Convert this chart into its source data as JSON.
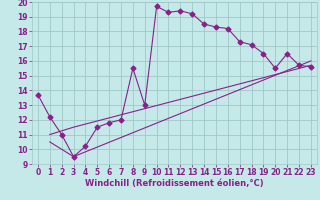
{
  "xlabel": "Windchill (Refroidissement éolien,°C)",
  "bg_color": "#c5e8e8",
  "grid_color": "#a0c8c8",
  "line_color": "#882288",
  "xlim": [
    -0.5,
    23.5
  ],
  "ylim": [
    9,
    20
  ],
  "xticks": [
    0,
    1,
    2,
    3,
    4,
    5,
    6,
    7,
    8,
    9,
    10,
    11,
    12,
    13,
    14,
    15,
    16,
    17,
    18,
    19,
    20,
    21,
    22,
    23
  ],
  "yticks": [
    9,
    10,
    11,
    12,
    13,
    14,
    15,
    16,
    17,
    18,
    19,
    20
  ],
  "series1_x": [
    0,
    1,
    2,
    3,
    4,
    5,
    6,
    7,
    8,
    9,
    10,
    11,
    12,
    13,
    14,
    15,
    16,
    17,
    18,
    19,
    20,
    21,
    22,
    23
  ],
  "series1_y": [
    13.7,
    12.2,
    11.0,
    9.5,
    10.2,
    11.5,
    11.8,
    12.0,
    15.5,
    13.0,
    19.7,
    19.3,
    19.4,
    19.2,
    18.5,
    18.3,
    18.2,
    17.3,
    17.1,
    16.5,
    15.5,
    16.5,
    15.7,
    15.6
  ],
  "series2_x": [
    1,
    3,
    23
  ],
  "series2_y": [
    10.5,
    9.5,
    16.0
  ],
  "series3_x": [
    1,
    3,
    23
  ],
  "series3_y": [
    11.0,
    11.5,
    15.7
  ],
  "xlabel_fontsize": 6,
  "tick_fontsize": 5.5
}
